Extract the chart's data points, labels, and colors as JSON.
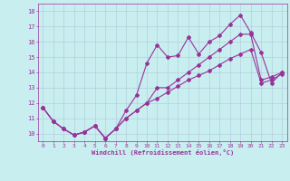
{
  "xlabel": "Windchill (Refroidissement éolien,°C)",
  "xlim": [
    -0.5,
    23.5
  ],
  "ylim": [
    9.5,
    18.5
  ],
  "yticks": [
    10,
    11,
    12,
    13,
    14,
    15,
    16,
    17,
    18
  ],
  "xticks": [
    0,
    1,
    2,
    3,
    4,
    5,
    6,
    7,
    8,
    9,
    10,
    11,
    12,
    13,
    14,
    15,
    16,
    17,
    18,
    19,
    20,
    21,
    22,
    23
  ],
  "background_color": "#c8eef0",
  "line_color": "#993399",
  "grid_color": "#b0c8d8",
  "line1_y": [
    11.7,
    10.8,
    10.3,
    9.9,
    10.1,
    10.5,
    9.7,
    10.3,
    11.0,
    11.5,
    12.0,
    12.3,
    12.7,
    13.1,
    13.5,
    13.8,
    14.1,
    14.5,
    14.9,
    15.2,
    15.5,
    13.3,
    13.5,
    13.9
  ],
  "line2_y": [
    11.7,
    10.8,
    10.3,
    9.9,
    10.1,
    10.5,
    9.7,
    10.3,
    11.5,
    12.5,
    14.6,
    15.8,
    15.0,
    15.1,
    16.3,
    15.2,
    16.0,
    16.4,
    17.15,
    17.75,
    16.6,
    15.3,
    13.3,
    14.0
  ],
  "line3_y": [
    11.7,
    10.8,
    10.3,
    9.9,
    10.1,
    10.5,
    9.7,
    10.3,
    11.0,
    11.5,
    12.0,
    13.0,
    13.0,
    13.5,
    14.0,
    14.5,
    15.0,
    15.5,
    16.0,
    16.5,
    16.5,
    13.5,
    13.7,
    14.0
  ]
}
